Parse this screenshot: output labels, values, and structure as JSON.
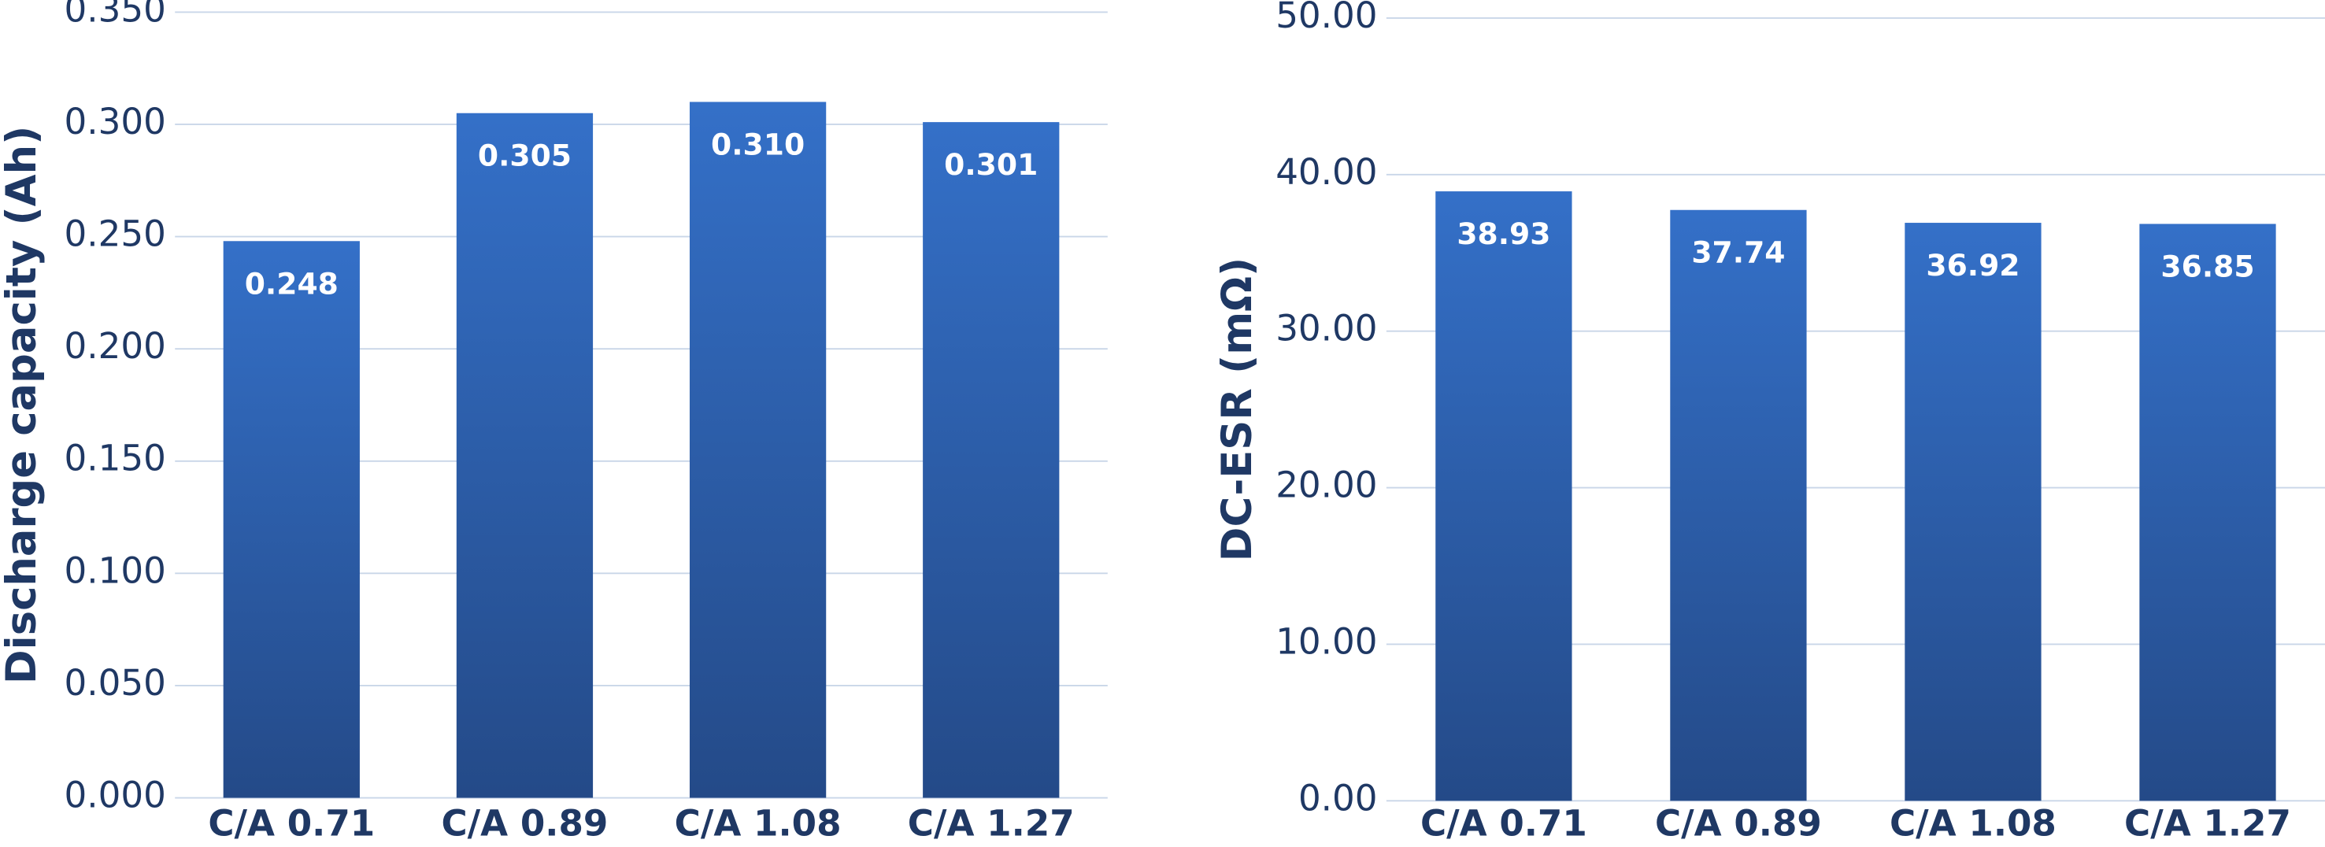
{
  "chart_data": [
    {
      "type": "bar",
      "y_label": "Discharge capacity (Ah)",
      "categories": [
        "C/A 0.71",
        "C/A 0.89",
        "C/A 1.08",
        "C/A 1.27"
      ],
      "values": [
        0.248,
        0.305,
        0.31,
        0.301
      ],
      "value_labels": [
        "0.248",
        "0.305",
        "0.310",
        "0.301"
      ],
      "color": "#3470c8",
      "ylim": [
        0,
        0.35
      ],
      "yticks": [
        {
          "value": 0,
          "label": "0.000"
        },
        {
          "value": 0.05,
          "label": "0.050"
        },
        {
          "value": 0.1,
          "label": "0.100"
        },
        {
          "value": 0.15,
          "label": "0.150"
        },
        {
          "value": 0.2,
          "label": "0.200"
        },
        {
          "value": 0.25,
          "label": "0.250"
        },
        {
          "value": 0.3,
          "label": "0.300"
        },
        {
          "value": 0.35,
          "label": "0.350"
        }
      ],
      "grid": true
    },
    {
      "type": "bar",
      "y_label": "DC-ESR (mΩ)",
      "categories": [
        "C/A 0.71",
        "C/A 0.89",
        "C/A 1.08",
        "C/A 1.27"
      ],
      "values": [
        38.93,
        37.74,
        36.92,
        36.85
      ],
      "color": "#3470c8",
      "ylim": [
        0,
        50
      ],
      "yticks": [
        {
          "value": 0,
          "label": "0.00"
        },
        {
          "value": 10,
          "label": "10.00"
        },
        {
          "value": 20,
          "label": "20.00"
        },
        {
          "value": 30,
          "label": "30.00"
        },
        {
          "value": 40,
          "label": "40.00"
        },
        {
          "value": 50,
          "label": "50.00"
        }
      ],
      "grid": true
    }
  ]
}
